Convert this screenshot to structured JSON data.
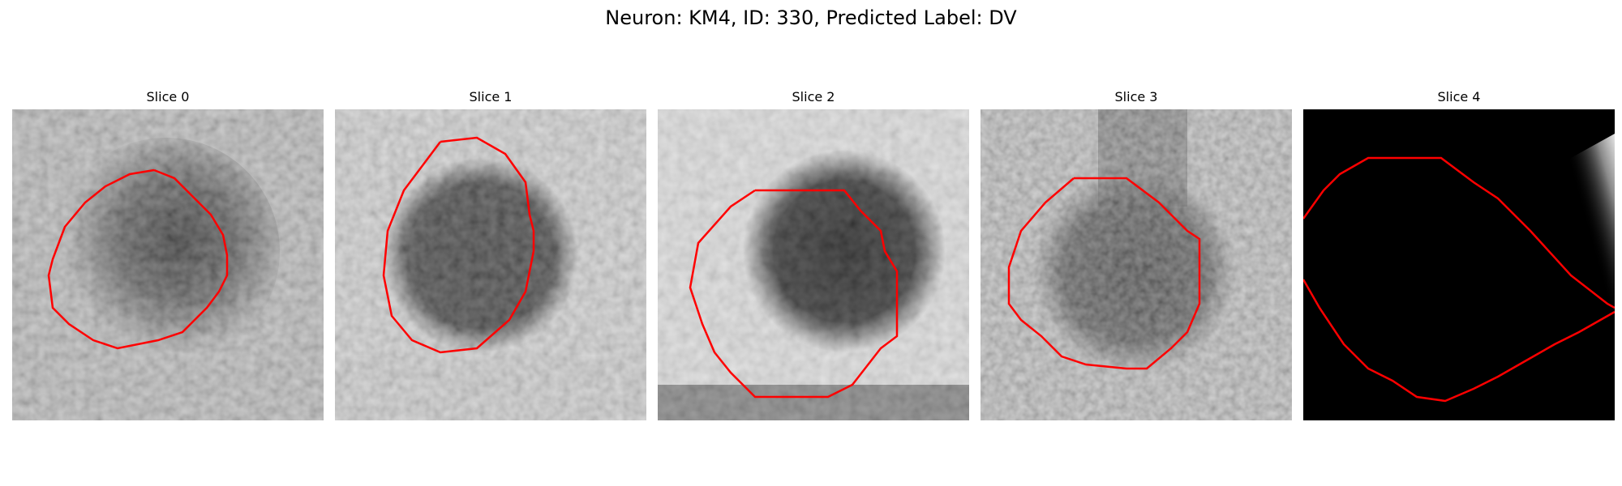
{
  "figure": {
    "title": "Neuron: KM4, ID: 330, Predicted Label: DV"
  },
  "panels": [
    {
      "title": "Slice 0"
    },
    {
      "title": "Slice 1"
    },
    {
      "title": "Slice 2"
    },
    {
      "title": "Slice 3"
    },
    {
      "title": "Slice 4"
    }
  ],
  "colors": {
    "contour": "#ff0000",
    "background": "#ffffff"
  }
}
